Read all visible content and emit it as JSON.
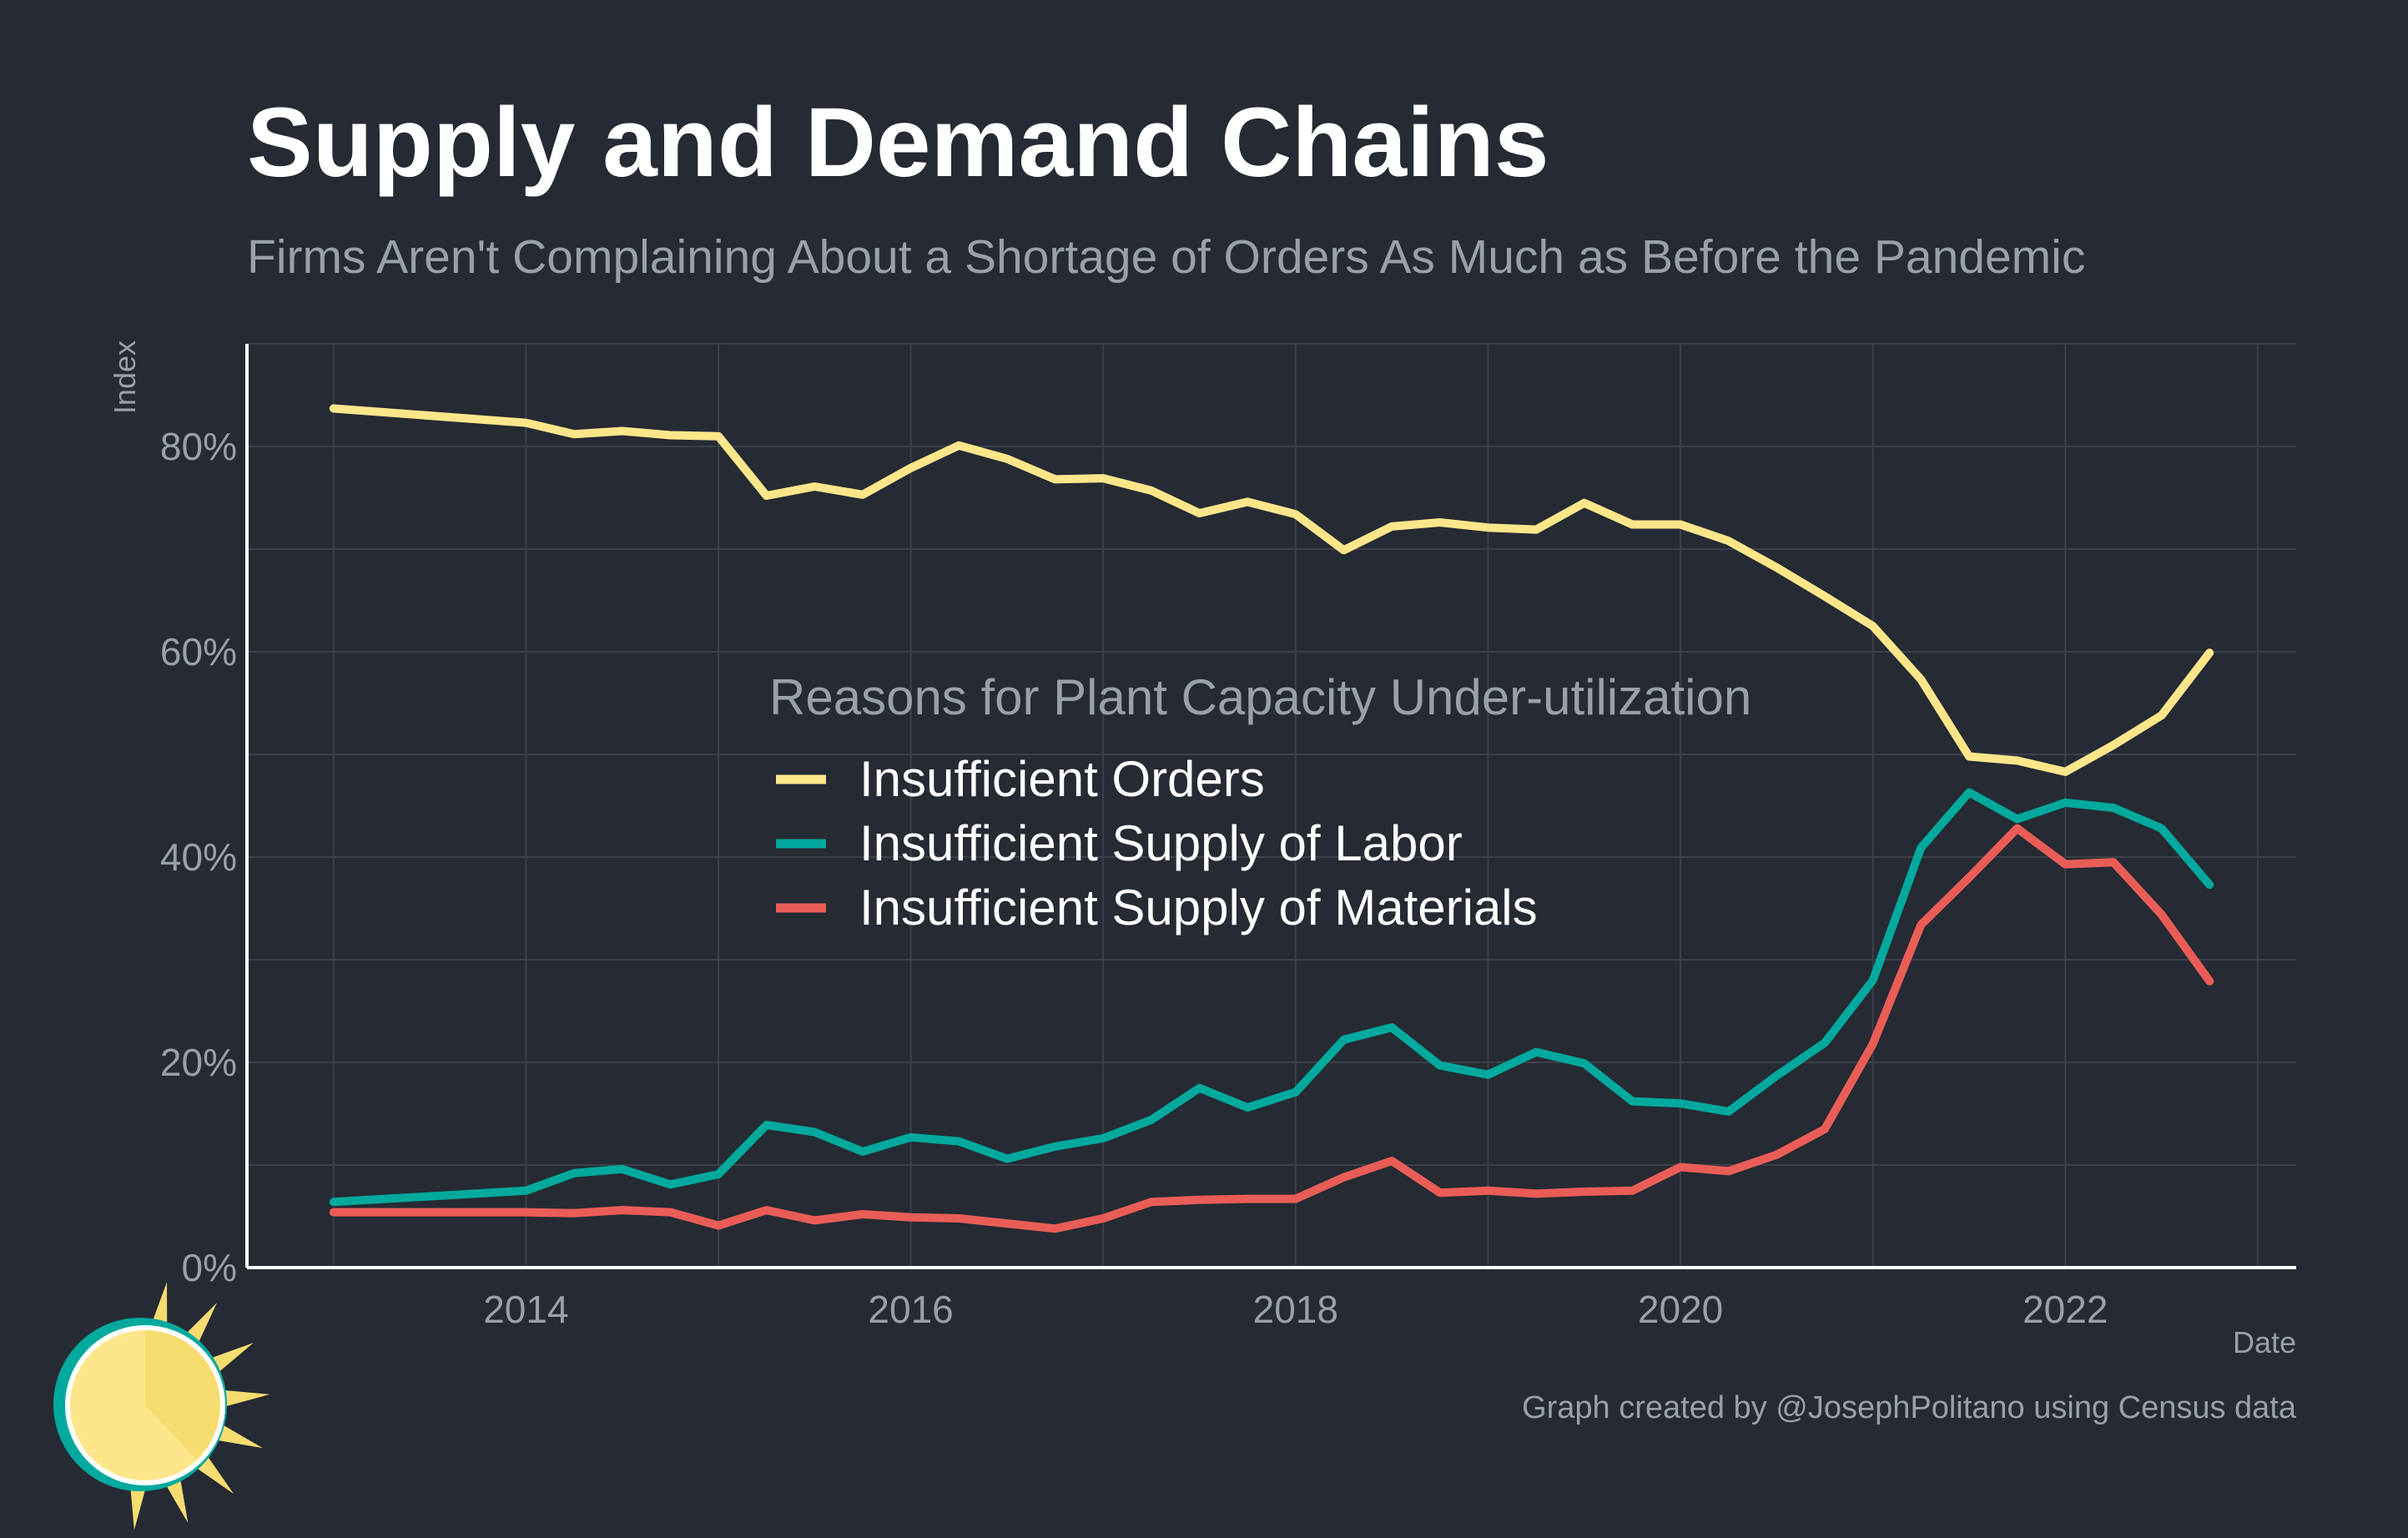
{
  "header": {
    "title": "Supply and Demand Chains",
    "subtitle": "Firms Aren't Complaining About a Shortage of Orders As Much as Before the Pandemic"
  },
  "footer": {
    "caption": "Graph created by @JosephPolitano using Census data"
  },
  "colors": {
    "background": "#252a33",
    "grid": "#3b404a",
    "axis": "#ffffff",
    "orders": "#fde68a",
    "labor": "#00a99d",
    "materials": "#ea5d57",
    "logo_sun": "#f7dc6f",
    "logo_ring": "#00a99d"
  },
  "logo": {
    "icon": "sun-icon"
  },
  "chart_data": {
    "type": "line",
    "xlabel": "Date",
    "ylabel": "Index",
    "xlim": [
      2012.55,
      2023.2
    ],
    "ylim": [
      0,
      90
    ],
    "x_ticks": [
      2014,
      2016,
      2018,
      2020,
      2022
    ],
    "x_tick_labels": [
      "2014",
      "2016",
      "2018",
      "2020",
      "2022"
    ],
    "y_ticks": [
      0,
      20,
      40,
      60,
      80
    ],
    "y_tick_labels": [
      "0%",
      "20%",
      "40%",
      "60%",
      "80%"
    ],
    "grid": true,
    "legend": {
      "title": "Reasons for Plant Capacity Under-utilization",
      "position": "center"
    },
    "x": [
      2013.0,
      2014.0,
      2014.25,
      2014.5,
      2014.75,
      2015.0,
      2015.25,
      2015.5,
      2015.75,
      2016.0,
      2016.25,
      2016.5,
      2016.75,
      2017.0,
      2017.25,
      2017.5,
      2017.75,
      2018.0,
      2018.25,
      2018.5,
      2018.75,
      2019.0,
      2019.25,
      2019.5,
      2019.75,
      2020.0,
      2020.25,
      2020.5,
      2020.75,
      2021.0,
      2021.25,
      2021.5,
      2021.75,
      2022.0,
      2022.25,
      2022.5,
      2022.75
    ],
    "series": [
      {
        "name": "Insufficient Orders",
        "color_key": "orders",
        "values": [
          83.7,
          82.3,
          81.2,
          81.5,
          81.1,
          81.0,
          75.2,
          76.1,
          75.3,
          77.9,
          80.1,
          78.8,
          76.8,
          76.9,
          75.7,
          73.5,
          74.6,
          73.4,
          69.9,
          72.2,
          72.6,
          72.1,
          71.9,
          74.5,
          72.4,
          72.4,
          70.8,
          68.2,
          65.4,
          62.5,
          57.3,
          49.8,
          49.4,
          48.3,
          50.9,
          53.8,
          59.9
        ]
      },
      {
        "name": "Insufficient Supply of Labor",
        "color_key": "labor",
        "values": [
          6.4,
          7.5,
          9.2,
          9.6,
          8.1,
          9.1,
          13.9,
          13.2,
          11.3,
          12.7,
          12.3,
          10.6,
          11.8,
          12.6,
          14.4,
          17.5,
          15.6,
          17.1,
          22.2,
          23.4,
          19.7,
          18.8,
          21.0,
          19.9,
          16.2,
          16.0,
          15.2,
          18.7,
          21.9,
          28.0,
          40.9,
          46.3,
          43.7,
          45.3,
          44.8,
          42.8,
          37.3
        ]
      },
      {
        "name": "Insufficient Supply of Materials",
        "color_key": "materials",
        "values": [
          5.4,
          5.4,
          5.3,
          5.6,
          5.4,
          4.1,
          5.6,
          4.6,
          5.2,
          4.9,
          4.8,
          4.3,
          3.8,
          4.8,
          6.4,
          6.6,
          6.7,
          6.7,
          8.8,
          10.4,
          7.3,
          7.5,
          7.2,
          7.4,
          7.5,
          9.8,
          9.4,
          11.0,
          13.5,
          21.8,
          33.4,
          38.0,
          42.8,
          39.3,
          39.5,
          34.4,
          27.9
        ]
      }
    ]
  }
}
